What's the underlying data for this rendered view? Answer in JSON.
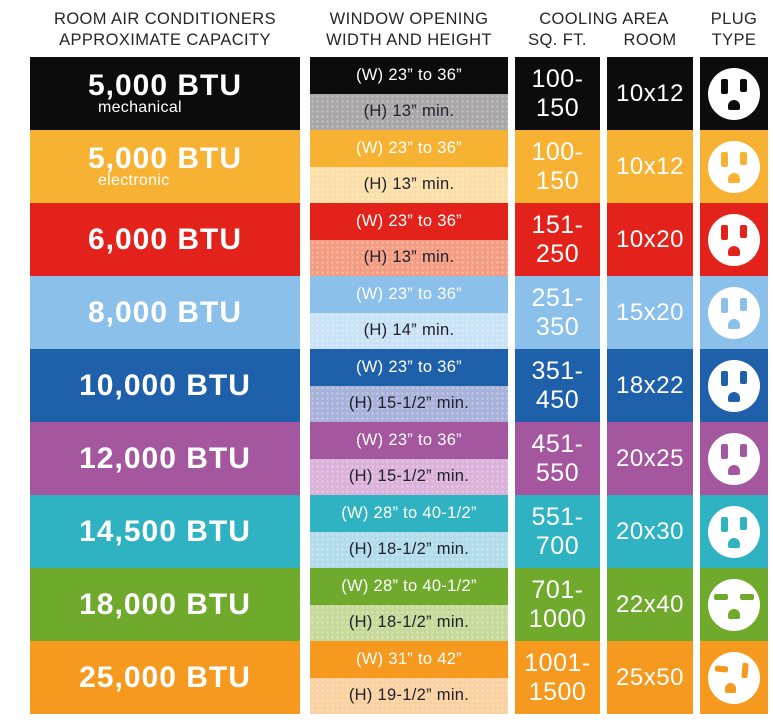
{
  "header": {
    "capacity_line1": "ROOM AIR CONDITIONERS",
    "capacity_line2": "APPROXIMATE CAPACITY",
    "window_line1": "WINDOW OPENING",
    "window_line2": "WIDTH AND HEIGHT",
    "cooling_title": "COOLING AREA",
    "cooling_sub_sqft": "SQ. FT.",
    "cooling_sub_room": "ROOM",
    "plug_line1": "PLUG",
    "plug_line2": "TYPE",
    "text_color": "#262626"
  },
  "rows": [
    {
      "btu": "5,000 BTU",
      "sublabel": "mechanical",
      "w": "(W) 23” to 36”",
      "h": "(H) 13” min.",
      "sqft1": "100-",
      "sqft2": "150",
      "room": "10x12",
      "plug": "plug-standard",
      "main": "#0c0c0c",
      "light": "#a8a6a7"
    },
    {
      "btu": "5,000 BTU",
      "sublabel": "electronic",
      "w": "(W) 23” to 36”",
      "h": "(H) 13” min.",
      "sqft1": "100-",
      "sqft2": "150",
      "room": "10x12",
      "plug": "plug-standard",
      "main": "#f7b233",
      "light": "#fbdfa8"
    },
    {
      "btu": "6,000 BTU",
      "sublabel": "",
      "w": "(W) 23” to 36”",
      "h": "(H) 13” min.",
      "sqft1": "151-",
      "sqft2": "250",
      "room": "10x20",
      "plug": "plug-standard",
      "main": "#e3231b",
      "light": "#f39c81"
    },
    {
      "btu": "8,000 BTU",
      "sublabel": "",
      "w": "(W) 23” to 36”",
      "h": "(H) 14” min.",
      "sqft1": "251-",
      "sqft2": "350",
      "room": "15x20",
      "plug": "plug-standard",
      "main": "#8ac0ea",
      "light": "#cae2f6"
    },
    {
      "btu": "10,000 BTU",
      "sublabel": "",
      "w": "(W) 23” to 36”",
      "h": "(H) 15-1/2” min.",
      "sqft1": "351-",
      "sqft2": "450",
      "room": "18x22",
      "plug": "plug-standard",
      "main": "#1f60aa",
      "light": "#a7b1d9"
    },
    {
      "btu": "12,000 BTU",
      "sublabel": "",
      "w": "(W) 23” to 36”",
      "h": "(H) 15-1/2” min.",
      "sqft1": "451-",
      "sqft2": "550",
      "room": "20x25",
      "plug": "plug-standard",
      "main": "#a4579f",
      "light": "#dab1d8"
    },
    {
      "btu": "14,500 BTU",
      "sublabel": "",
      "w": "(W) 28” to 40-1/2”",
      "h": "(H) 18-1/2” min.",
      "sqft1": "551-",
      "sqft2": "700",
      "room": "20x30",
      "plug": "plug-standard",
      "main": "#2fb3c2",
      "light": "#b2dcea"
    },
    {
      "btu": "18,000 BTU",
      "sublabel": "",
      "w": "(W) 28” to 40-1/2”",
      "h": "(H) 18-1/2” min.",
      "sqft1": "701-",
      "sqft2": "1000",
      "room": "22x40",
      "plug": "plug-230v",
      "main": "#70aa2d",
      "light": "#c6d998"
    },
    {
      "btu": "25,000 BTU",
      "sublabel": "",
      "w": "(W) 31” to 42”",
      "h": "(H) 19-1/2” min.",
      "sqft1": "1001-",
      "sqft2": "1500",
      "room": "25x50",
      "plug": "plug-high-capacity",
      "main": "#f5991f",
      "light": "#fad1a0"
    }
  ],
  "chart_data": {
    "type": "table",
    "title": "Room Air Conditioners Approximate Capacity",
    "columns": [
      "ROOM AIR CONDITIONERS APPROXIMATE CAPACITY",
      "WINDOW OPENING WIDTH AND HEIGHT",
      "COOLING AREA SQ. FT.",
      "COOLING AREA ROOM",
      "PLUG TYPE"
    ],
    "rows": [
      [
        "5,000 BTU mechanical",
        "(W) 23” to 36”; (H) 13” min.",
        "100-150",
        "10x12",
        "standard outlet"
      ],
      [
        "5,000 BTU electronic",
        "(W) 23” to 36”; (H) 13” min.",
        "100-150",
        "10x12",
        "standard outlet"
      ],
      [
        "6,000 BTU",
        "(W) 23” to 36”; (H) 13” min.",
        "151-250",
        "10x20",
        "standard outlet"
      ],
      [
        "8,000 BTU",
        "(W) 23” to 36”; (H) 14” min.",
        "251-350",
        "15x20",
        "standard outlet"
      ],
      [
        "10,000 BTU",
        "(W) 23” to 36”; (H) 15-1/2” min.",
        "351-450",
        "18x22",
        "standard outlet"
      ],
      [
        "12,000 BTU",
        "(W) 23” to 36”; (H) 15-1/2” min.",
        "451-550",
        "20x25",
        "standard outlet"
      ],
      [
        "14,500 BTU",
        "(W) 28” to 40-1/2”; (H) 18-1/2” min.",
        "551-700",
        "20x30",
        "standard outlet"
      ],
      [
        "18,000 BTU",
        "(W) 28” to 40-1/2”; (H) 18-1/2” min.",
        "701-1000",
        "22x40",
        "230v horizontal-slot outlet"
      ],
      [
        "25,000 BTU",
        "(W) 31” to 42”; (H) 19-1/2” min.",
        "1001-1500",
        "25x50",
        "high-capacity outlet"
      ]
    ]
  }
}
